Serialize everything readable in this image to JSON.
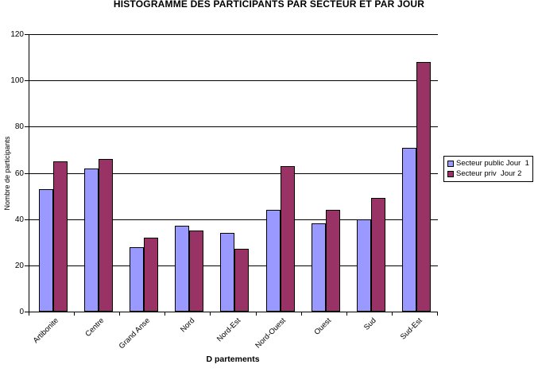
{
  "page": {
    "background": "#ffffff"
  },
  "chart_data": {
    "type": "bar",
    "title": "HISTOGRAMME DES PARTICIPANTS PAR SECTEUR ET PAR JOUR",
    "xlabel": "D partements",
    "ylabel": "Nombre de participants",
    "categories": [
      "Artibonite",
      "Centre",
      "Grand Anse",
      "Nord",
      "Nord-Est",
      "Nord-Ouest",
      "Ouest",
      "Sud",
      "Sud-Est"
    ],
    "series": [
      {
        "name": "Secteur public Jour  1",
        "color": "#9999FF",
        "values": [
          53,
          62,
          28,
          37,
          34,
          44,
          38,
          40,
          71
        ]
      },
      {
        "name": "Secteur priv  Jour 2",
        "color": "#993366",
        "values": [
          65,
          66,
          32,
          35,
          27,
          63,
          44,
          49,
          108
        ]
      }
    ],
    "ylim": [
      0,
      120
    ],
    "ytick_step": 20,
    "ytick_labels": [
      "0",
      "20",
      "40",
      "60",
      "80",
      "100",
      "120"
    ],
    "grid": true,
    "legend_position": "right",
    "axis_color": "#000000",
    "bar_border_color": "#000000"
  }
}
